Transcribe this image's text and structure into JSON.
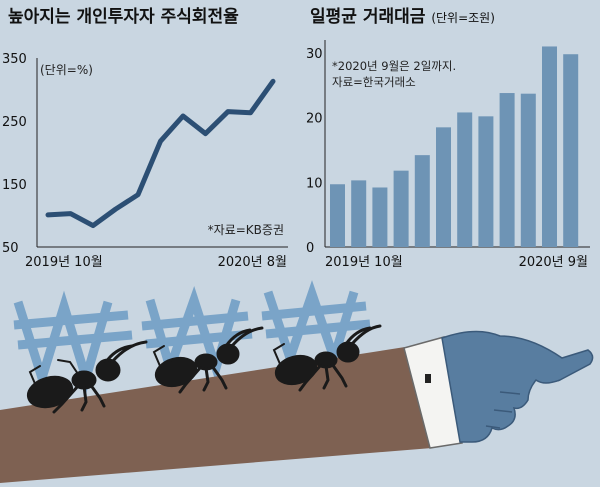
{
  "chart_data": [
    {
      "type": "line",
      "title": "높아지는 개인투자자 주식회전율",
      "unit": "(단위=%)",
      "x_start_label": "2019년 10월",
      "x_end_label": "2020년 8월",
      "y_ticks": [
        "350",
        "250",
        "150",
        "50"
      ],
      "ylim": [
        50,
        350
      ],
      "values": [
        101,
        103,
        84,
        110,
        133,
        218,
        258,
        230,
        265,
        263,
        313
      ],
      "source": "*자료=KB증권",
      "line_color": "#2c4f74",
      "grid": false
    },
    {
      "type": "bar",
      "title": "일평균 거래대금",
      "unit": "(단위=조원)",
      "x_start_label": "2019년 10월",
      "x_end_label": "2020년 9월",
      "y_ticks": [
        "30",
        "20",
        "10",
        "0"
      ],
      "ylim": [
        0,
        32
      ],
      "values": [
        9.7,
        10.3,
        9.2,
        11.8,
        14.2,
        18.5,
        20.8,
        20.2,
        23.8,
        23.7,
        31.0,
        29.8
      ],
      "note_line1": "*2020년 9월은 2일까지.",
      "note_line2": "자료=한국거래소",
      "bar_color": "#6e94b5",
      "grid": false
    }
  ]
}
